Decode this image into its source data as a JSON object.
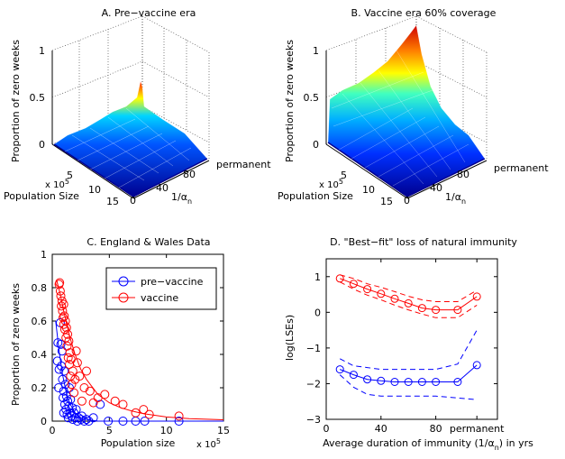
{
  "chart_data": [
    {
      "type": "surface",
      "title": "A. Pre−vaccine era",
      "zlabel": "Proportion of zero weeks",
      "ylabel": "Population Size",
      "y_scale": "x 10",
      "y_scale_exp": "5",
      "xlabel": "1/α",
      "xlabel_sub": "n",
      "z_ticks": [
        "0",
        "0.5",
        "1"
      ],
      "y_ticks": [
        "5",
        "10",
        "15"
      ],
      "x_ticks": [
        "0",
        "40",
        "80",
        "permanent"
      ],
      "zlim": [
        0,
        1
      ],
      "peak_z": 0.55,
      "note": "surface rises toward small population and permanent immunity"
    },
    {
      "type": "surface",
      "title": "B. Vaccine era 60% coverage",
      "zlabel": "Proportion of zero weeks",
      "ylabel": "Population Size",
      "y_scale": "x 10",
      "y_scale_exp": "5",
      "xlabel": "1/α",
      "xlabel_sub": "n",
      "z_ticks": [
        "0",
        "0.5",
        "1"
      ],
      "y_ticks": [
        "5",
        "10",
        "15"
      ],
      "x_ticks": [
        "0",
        "40",
        "80",
        "permanent"
      ],
      "zlim": [
        0,
        1
      ],
      "peak_z": 1.0
    },
    {
      "type": "scatter",
      "title": "C. England & Wales Data",
      "xlabel": "Population size",
      "x_scale": "x 10",
      "x_scale_exp": "5",
      "ylabel": "Proportion of zero weeks",
      "xlim": [
        0,
        15
      ],
      "ylim": [
        0,
        1
      ],
      "x_ticks": [
        "0",
        "5",
        "10",
        "15"
      ],
      "y_ticks": [
        "0",
        "0.2",
        "0.4",
        "0.6",
        "0.8",
        "1"
      ],
      "legend_position": "top-right",
      "series": [
        {
          "name": "pre−vaccine",
          "color": "#0000ff",
          "points": [
            [
              0.45,
              0.36
            ],
            [
              0.5,
              0.47
            ],
            [
              0.55,
              0.2
            ],
            [
              0.6,
              0.31
            ],
            [
              0.7,
              0.59
            ],
            [
              0.75,
              0.46
            ],
            [
              0.8,
              0.33
            ],
            [
              0.85,
              0.42
            ],
            [
              0.9,
              0.25
            ],
            [
              0.95,
              0.14
            ],
            [
              1.0,
              0.05
            ],
            [
              1.0,
              0.18
            ],
            [
              1.05,
              0.3
            ],
            [
              1.1,
              0.1
            ],
            [
              1.15,
              0.22
            ],
            [
              1.2,
              0.07
            ],
            [
              1.25,
              0.15
            ],
            [
              1.3,
              0.04
            ],
            [
              1.35,
              0.12
            ],
            [
              1.4,
              0.02
            ],
            [
              1.45,
              0.09
            ],
            [
              1.5,
              0.2
            ],
            [
              1.55,
              0.05
            ],
            [
              1.6,
              0.13
            ],
            [
              1.7,
              0.03
            ],
            [
              1.75,
              0.08
            ],
            [
              1.8,
              0.01
            ],
            [
              1.9,
              0.05
            ],
            [
              2.0,
              0.02
            ],
            [
              2.1,
              0.07
            ],
            [
              2.2,
              0.0
            ],
            [
              2.3,
              0.02
            ],
            [
              2.5,
              0.01
            ],
            [
              2.6,
              0.03
            ],
            [
              2.8,
              0.0
            ],
            [
              3.0,
              0.01
            ],
            [
              3.2,
              0.0
            ],
            [
              3.6,
              0.02
            ],
            [
              4.2,
              0.1
            ],
            [
              4.9,
              0.0
            ],
            [
              6.2,
              0.0
            ],
            [
              7.3,
              0.0
            ],
            [
              8.1,
              0.0
            ],
            [
              11.1,
              0.0
            ]
          ],
          "fit": [
            [
              0.3,
              0.6
            ],
            [
              0.6,
              0.42
            ],
            [
              0.9,
              0.28
            ],
            [
              1.2,
              0.18
            ],
            [
              1.5,
              0.11
            ],
            [
              2.0,
              0.05
            ],
            [
              2.5,
              0.02
            ],
            [
              3.0,
              0.01
            ],
            [
              4.0,
              0.0
            ],
            [
              15,
              0.0
            ]
          ]
        },
        {
          "name": "vaccine",
          "color": "#ff0000",
          "points": [
            [
              0.6,
              0.82
            ],
            [
              0.65,
              0.83
            ],
            [
              0.7,
              0.78
            ],
            [
              0.75,
              0.75
            ],
            [
              0.8,
              0.69
            ],
            [
              0.85,
              0.72
            ],
            [
              0.9,
              0.66
            ],
            [
              0.95,
              0.62
            ],
            [
              1.0,
              0.7
            ],
            [
              1.0,
              0.58
            ],
            [
              1.05,
              0.63
            ],
            [
              1.1,
              0.55
            ],
            [
              1.15,
              0.6
            ],
            [
              1.2,
              0.5
            ],
            [
              1.25,
              0.56
            ],
            [
              1.3,
              0.45
            ],
            [
              1.35,
              0.52
            ],
            [
              1.4,
              0.38
            ],
            [
              1.45,
              0.48
            ],
            [
              1.5,
              0.34
            ],
            [
              1.55,
              0.41
            ],
            [
              1.6,
              0.27
            ],
            [
              1.65,
              0.37
            ],
            [
              1.7,
              0.22
            ],
            [
              1.8,
              0.3
            ],
            [
              1.9,
              0.17
            ],
            [
              2.0,
              0.25
            ],
            [
              2.1,
              0.42
            ],
            [
              2.2,
              0.35
            ],
            [
              2.4,
              0.27
            ],
            [
              2.6,
              0.12
            ],
            [
              2.8,
              0.2
            ],
            [
              3.0,
              0.3
            ],
            [
              3.3,
              0.18
            ],
            [
              3.6,
              0.11
            ],
            [
              4.0,
              0.14
            ],
            [
              4.6,
              0.16
            ],
            [
              5.5,
              0.12
            ],
            [
              6.2,
              0.1
            ],
            [
              7.3,
              0.05
            ],
            [
              8.0,
              0.07
            ],
            [
              8.5,
              0.04
            ],
            [
              11.1,
              0.03
            ]
          ],
          "fit": [
            [
              0.4,
              0.84
            ],
            [
              0.7,
              0.76
            ],
            [
              1.0,
              0.66
            ],
            [
              1.3,
              0.57
            ],
            [
              1.6,
              0.49
            ],
            [
              2.0,
              0.4
            ],
            [
              2.5,
              0.31
            ],
            [
              3.0,
              0.25
            ],
            [
              4.0,
              0.16
            ],
            [
              5.0,
              0.11
            ],
            [
              6.0,
              0.08
            ],
            [
              7.0,
              0.06
            ],
            [
              8.0,
              0.045
            ],
            [
              10.0,
              0.025
            ],
            [
              12.0,
              0.015
            ],
            [
              15.0,
              0.008
            ]
          ]
        }
      ]
    },
    {
      "type": "line",
      "title": "D. \"Best−fit\" loss of natural immunity",
      "xlabel": "Average duration of immunity (1/α",
      "xlabel_sub": "n",
      "xlabel_end": ") in yrs",
      "ylabel": "log(LSEs)",
      "xlim": [
        0,
        125
      ],
      "ylim": [
        -3,
        1.5
      ],
      "x_ticks": [
        "0",
        "40",
        "80",
        "permanent"
      ],
      "x_tick_values": [
        0,
        40,
        80,
        110
      ],
      "y_ticks": [
        "−3",
        "−2",
        "−1",
        "0",
        "1"
      ],
      "y_tick_values": [
        -3,
        -2,
        -1,
        0,
        1
      ],
      "x": [
        10,
        20,
        30,
        40,
        50,
        60,
        70,
        80,
        96,
        110
      ],
      "series": [
        {
          "name": "vaccine",
          "color": "#ff0000",
          "mean": [
            0.95,
            0.8,
            0.65,
            0.52,
            0.38,
            0.25,
            0.12,
            0.07,
            0.07,
            0.44
          ],
          "upper": [
            1.05,
            0.95,
            0.8,
            0.7,
            0.58,
            0.45,
            0.35,
            0.3,
            0.3,
            0.62
          ],
          "lower": [
            0.85,
            0.65,
            0.48,
            0.35,
            0.2,
            0.07,
            -0.05,
            -0.15,
            -0.15,
            0.2
          ]
        },
        {
          "name": "pre−vaccine",
          "color": "#0000ff",
          "mean": [
            -1.6,
            -1.75,
            -1.88,
            -1.92,
            -1.95,
            -1.95,
            -1.95,
            -1.95,
            -1.95,
            -1.48
          ],
          "upper": [
            -1.3,
            -1.5,
            -1.55,
            -1.6,
            -1.6,
            -1.6,
            -1.6,
            -1.6,
            -1.45,
            -0.5
          ],
          "lower": [
            -1.75,
            -2.1,
            -2.3,
            -2.35,
            -2.35,
            -2.35,
            -2.35,
            -2.35,
            -2.4,
            -2.45
          ]
        }
      ]
    }
  ]
}
